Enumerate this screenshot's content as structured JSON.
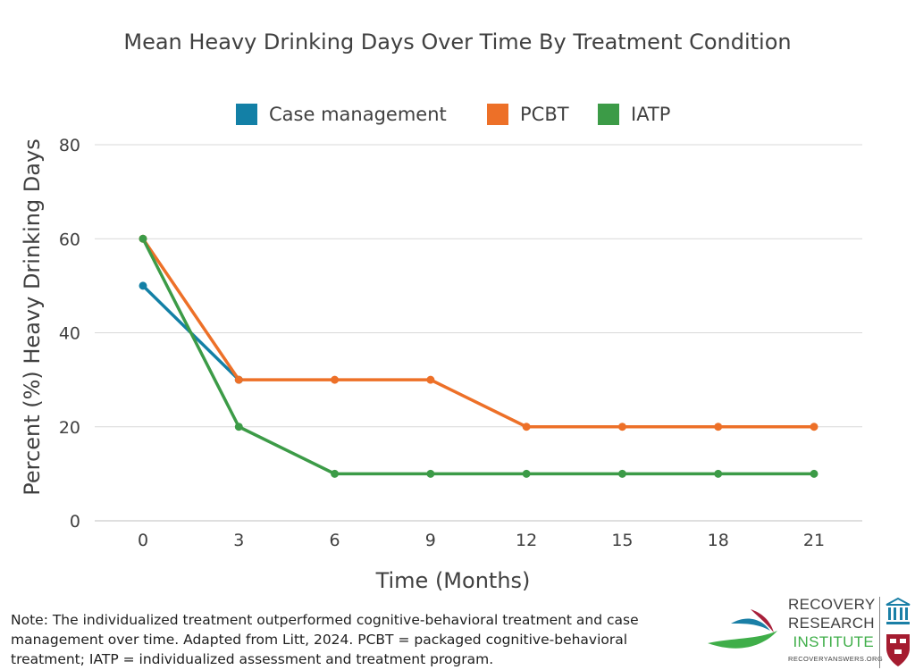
{
  "chart_data": {
    "type": "line",
    "title": "Mean Heavy Drinking Days Over Time By Treatment Condition",
    "xlabel": "Time (Months)",
    "ylabel": "Percent (%) Heavy Drinking Days",
    "x": [
      0,
      3,
      6,
      9,
      12,
      15,
      18,
      21
    ],
    "ylim": [
      0,
      80
    ],
    "yticks": [
      0,
      20,
      40,
      60,
      80
    ],
    "grid": true,
    "legend": "top-center",
    "series": [
      {
        "name": "Case management",
        "color": "#1380a6",
        "values": [
          50,
          30,
          null,
          null,
          null,
          null,
          null,
          null
        ]
      },
      {
        "name": "PCBT",
        "color": "#ed7028",
        "values": [
          60,
          30,
          30,
          30,
          20,
          20,
          20,
          20
        ]
      },
      {
        "name": "IATP",
        "color": "#3c9b47",
        "values": [
          60,
          20,
          10,
          10,
          10,
          10,
          10,
          10
        ]
      }
    ]
  },
  "note": "Note: The individualized treatment outperformed cognitive-behavioral treatment and case management over time. Adapted from Litt, 2024. PCBT = packaged cognitive-behavioral treatment; IATP = individualized assessment and treatment program.",
  "logo": {
    "line1": "RECOVERY",
    "line2": "RESEARCH",
    "line3": "INSTITUTE",
    "url": "RECOVERYANSWERS.ORG",
    "icon": "building-columns-icon",
    "shield": "harvard-shield-icon"
  }
}
